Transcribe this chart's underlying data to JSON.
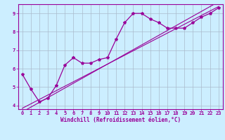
{
  "xlabel": "Windchill (Refroidissement éolien,°C)",
  "background_color": "#cceeff",
  "line_color": "#990099",
  "grid_color": "#aabbcc",
  "x_data": [
    0,
    1,
    2,
    3,
    4,
    5,
    6,
    7,
    8,
    9,
    10,
    11,
    12,
    13,
    14,
    15,
    16,
    17,
    18,
    19,
    20,
    21,
    22,
    23
  ],
  "y_curve": [
    5.7,
    4.9,
    4.2,
    4.4,
    5.1,
    6.2,
    6.6,
    6.3,
    6.3,
    6.5,
    6.6,
    7.6,
    8.5,
    9.0,
    9.0,
    8.7,
    8.5,
    8.2,
    8.2,
    8.2,
    8.5,
    8.8,
    9.0,
    9.3
  ],
  "y_linear1": [
    3.85,
    4.09,
    4.33,
    4.57,
    4.81,
    5.05,
    5.29,
    5.53,
    5.77,
    6.01,
    6.25,
    6.49,
    6.73,
    6.97,
    7.21,
    7.45,
    7.69,
    7.93,
    8.17,
    8.41,
    8.65,
    8.89,
    9.13,
    9.37
  ],
  "y_linear2": [
    3.65,
    3.91,
    4.17,
    4.43,
    4.69,
    4.95,
    5.21,
    5.47,
    5.73,
    5.99,
    6.25,
    6.51,
    6.77,
    7.03,
    7.29,
    7.55,
    7.81,
    8.07,
    8.33,
    8.59,
    8.85,
    9.11,
    9.37,
    9.63
  ],
  "ylim": [
    3.8,
    9.5
  ],
  "xlim": [
    -0.5,
    23.5
  ],
  "yticks": [
    4,
    5,
    6,
    7,
    8,
    9
  ],
  "xticks": [
    0,
    1,
    2,
    3,
    4,
    5,
    6,
    7,
    8,
    9,
    10,
    11,
    12,
    13,
    14,
    15,
    16,
    17,
    18,
    19,
    20,
    21,
    22,
    23
  ]
}
